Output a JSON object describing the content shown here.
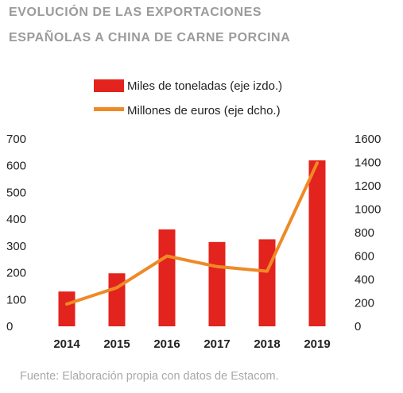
{
  "title_line1": "EVOLUCIÓN DE LAS EXPORTACIONES",
  "title_line2": "ESPAÑOLAS A CHINA DE CARNE PORCINA",
  "source": "Fuente: Elaboración propia con datos de Estacom.",
  "colors": {
    "bar": "#e3231e",
    "line": "#ee8a26",
    "title": "#9b9b9b"
  },
  "chart_data": {
    "type": "bar+line",
    "categories": [
      "2014",
      "2015",
      "2016",
      "2017",
      "2018",
      "2019"
    ],
    "series": [
      {
        "name": "Miles de toneladas (eje izdo.)",
        "type": "bar",
        "axis": "left",
        "values": [
          130,
          198,
          362,
          315,
          325,
          620
        ]
      },
      {
        "name": "Millones de euros (eje dcho.)",
        "type": "line",
        "axis": "right",
        "values": [
          190,
          330,
          600,
          510,
          470,
          1395
        ]
      }
    ],
    "y_left": {
      "min": 0,
      "max": 700,
      "ticks": [
        0,
        100,
        200,
        300,
        400,
        500,
        600,
        700
      ]
    },
    "y_right": {
      "min": 0,
      "max": 1600,
      "ticks": [
        0,
        200,
        400,
        600,
        800,
        1000,
        1200,
        1400,
        1600
      ]
    },
    "grid": false,
    "legend_position": "top"
  }
}
